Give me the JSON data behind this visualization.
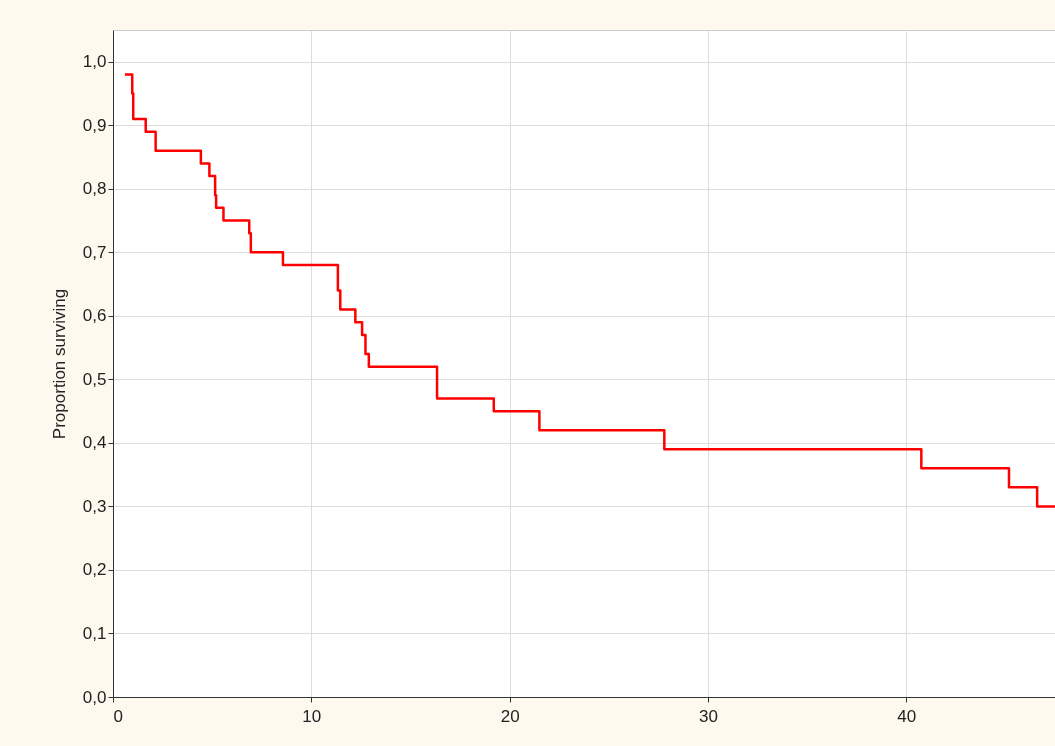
{
  "chart_data": {
    "type": "step",
    "ylabel": "Proportion surviving",
    "x": [
      0.6,
      0.97,
      1.02,
      1.65,
      2.15,
      4.43,
      4.86,
      5.15,
      5.2,
      5.57,
      6.87,
      6.95,
      8.57,
      11.34,
      11.46,
      12.22,
      12.56,
      12.73,
      12.9,
      16.34,
      19.2,
      21.5,
      27.8,
      40.76,
      45.18,
      46.6,
      47.5
    ],
    "series": [
      {
        "color": "#ff0000",
        "values": [
          0.98,
          0.95,
          0.91,
          0.89,
          0.86,
          0.84,
          0.82,
          0.79,
          0.77,
          0.75,
          0.73,
          0.7,
          0.68,
          0.64,
          0.61,
          0.59,
          0.57,
          0.54,
          0.52,
          0.47,
          0.45,
          0.42,
          0.39,
          0.36,
          0.33,
          0.3,
          0.3
        ]
      }
    ],
    "xlim": [
      0,
      47.5
    ],
    "xticks": [
      0,
      10,
      20,
      30,
      40
    ],
    "ylim": [
      0,
      1.05
    ],
    "yticks": [
      {
        "value": 0,
        "label": "0,0"
      },
      {
        "value": 0.1,
        "label": "0,1"
      },
      {
        "value": 0.2,
        "label": "0,2"
      },
      {
        "value": 0.3,
        "label": "0,3"
      },
      {
        "value": 0.4,
        "label": "0,4"
      },
      {
        "value": 0.5,
        "label": "0,5"
      },
      {
        "value": 0.6,
        "label": "0,6"
      },
      {
        "value": 0.7,
        "label": "0,7"
      },
      {
        "value": 0.8,
        "label": "0,8"
      },
      {
        "value": 0.9,
        "label": "0,9"
      },
      {
        "value": 1.0,
        "label": "1,0"
      }
    ],
    "grid": true,
    "line_style": "solid"
  }
}
